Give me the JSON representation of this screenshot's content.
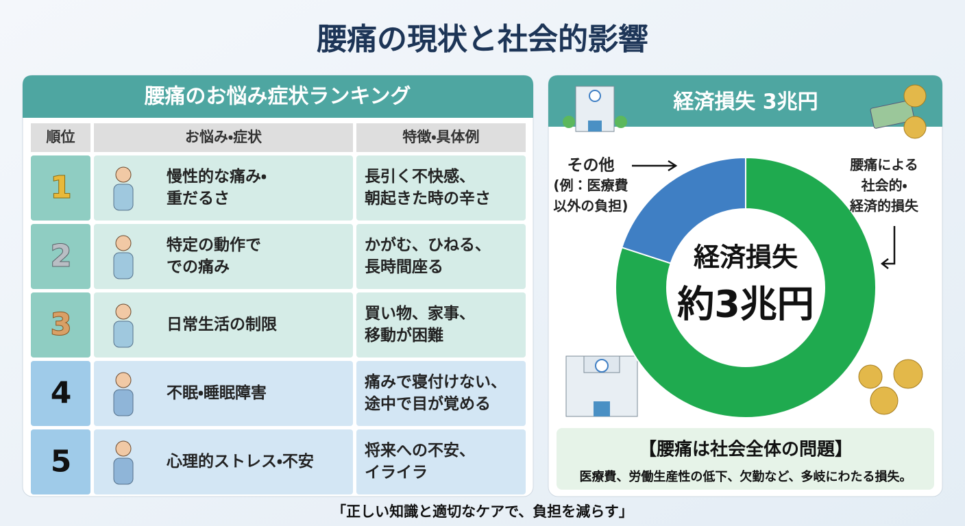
{
  "header": {
    "title": "腰痛の現状と社会的影響"
  },
  "ranking": {
    "title": "腰痛のお悩み症状ランキング",
    "columns": [
      "順位",
      "お悩み・症状",
      "特徴・具体例"
    ],
    "rows": [
      {
        "rank": "1",
        "symptom": [
          "慢性的な痛み・",
          "重だるさ"
        ],
        "example": [
          "長引く不快感、",
          "朝起きた時の辛さ"
        ]
      },
      {
        "rank": "2",
        "symptom": [
          "特定の動作で",
          "での痛み"
        ],
        "example": [
          "かがむ、ひねる、",
          "長時間座る"
        ]
      },
      {
        "rank": "3",
        "symptom": [
          "日常生活の制限"
        ],
        "example": [
          "買い物、家事、",
          "移動が困難"
        ]
      },
      {
        "rank": "4",
        "symptom": [
          "不眠・睡眠障害"
        ],
        "example": [
          "痛みで寝付けない、",
          "途中で目が覚める"
        ]
      },
      {
        "rank": "5",
        "symptom": [
          "心理的ストレス・不安"
        ],
        "example": [
          "将来への不安、",
          "イライラ"
        ]
      }
    ]
  },
  "economy": {
    "title": "経済損失 3兆円",
    "donut": {
      "segments": [
        {
          "label": [
            "腰痛による",
            "社会的・",
            "経済的損失"
          ],
          "value": 80,
          "color": "#1faa4f"
        },
        {
          "label": [
            "その他",
            "(例：医療費",
            "以外の負担)"
          ],
          "value": 20,
          "color": "#3f7fc4"
        }
      ],
      "center": [
        "経済損失",
        "約3兆円"
      ]
    },
    "note_title": "【腰痛は社会全体の問題】",
    "note_text": "医療費、労働生産性の低下、欠勤など、多岐にわたる損失。"
  },
  "footer": "「正しい知識と適切なケアで、負担を減らす」"
}
